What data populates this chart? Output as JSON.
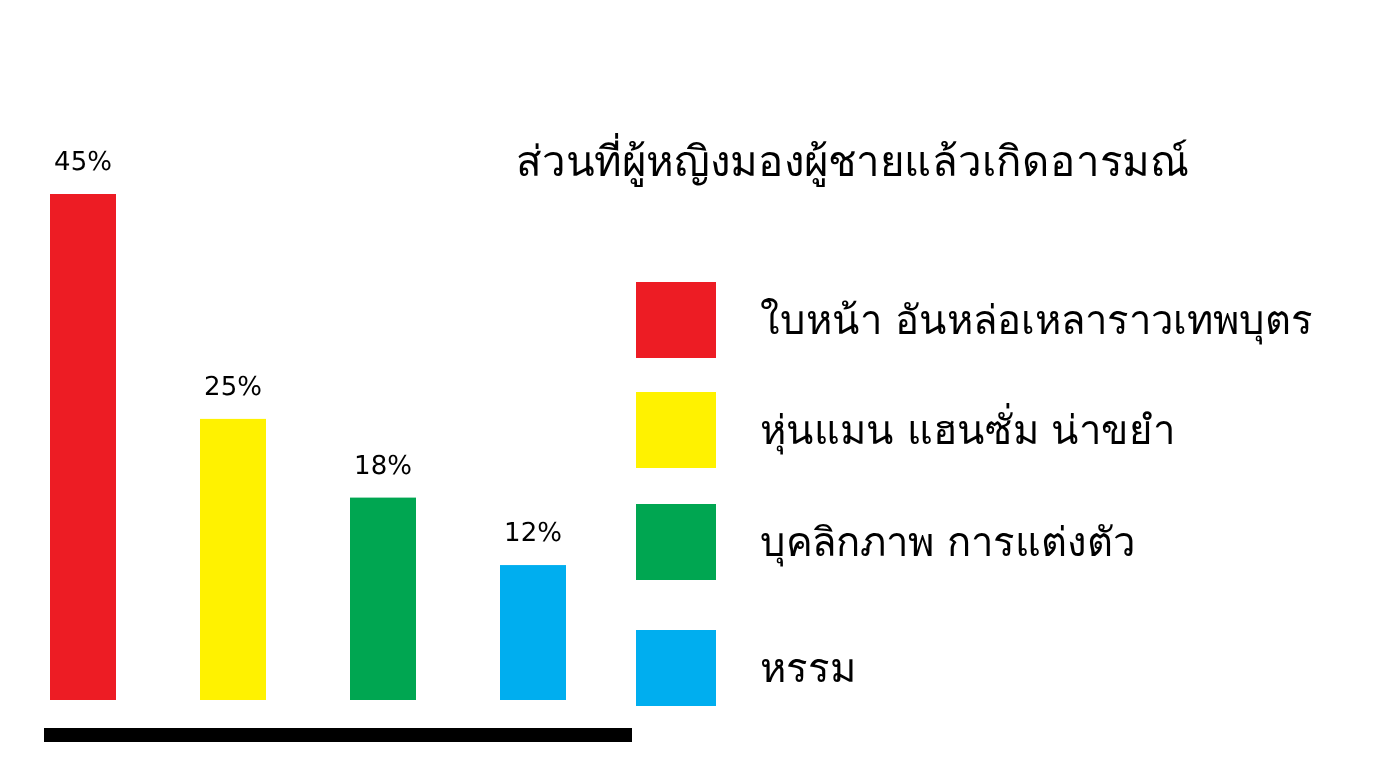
{
  "chart_data": {
    "type": "bar",
    "title": "ส่วนที่ผู้หญิงมองผู้ชายแล้วเกิดอารมณ์",
    "categories": [
      null,
      null,
      null,
      null
    ],
    "values": [
      45,
      25,
      18,
      12
    ],
    "colors": [
      "#ed1c24",
      "#fff200",
      "#00a651",
      "#00aeef"
    ],
    "value_labels": [
      "45%",
      "25%",
      "18%",
      "12%"
    ],
    "annotations": [
      "ใบหน้า อันหล่อเหลาราวเทพบุตร",
      "หุ่นแมน แฮนซั่ม น่าขยำ",
      "บุคลิกภาพ การแต่งตัว",
      "หรรม"
    ]
  }
}
